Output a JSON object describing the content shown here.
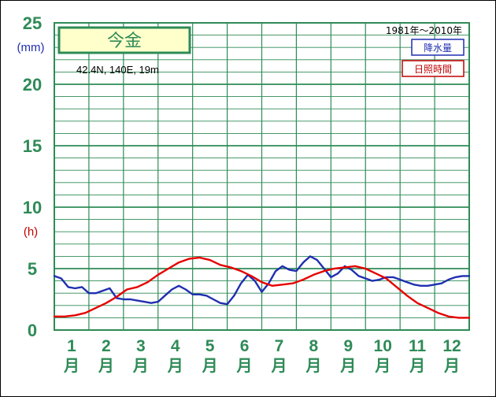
{
  "chart_data": {
    "type": "line",
    "station": "今金",
    "location": "42.4N,  140E,  19m",
    "period": "1981年〜2010年",
    "y_unit_precip": "(mm)",
    "y_unit_sun": "(h)",
    "y_ticks": [
      "0",
      "5",
      "10",
      "15",
      "20",
      "25"
    ],
    "ylim": [
      0,
      25
    ],
    "xlim": [
      0.5,
      12.5
    ],
    "grid": true,
    "legend_position": "top-right",
    "months": [
      {
        "num": "1",
        "kanji": "月"
      },
      {
        "num": "2",
        "kanji": "月"
      },
      {
        "num": "3",
        "kanji": "月"
      },
      {
        "num": "4",
        "kanji": "月"
      },
      {
        "num": "5",
        "kanji": "月"
      },
      {
        "num": "6",
        "kanji": "月"
      },
      {
        "num": "7",
        "kanji": "月"
      },
      {
        "num": "8",
        "kanji": "月"
      },
      {
        "num": "9",
        "kanji": "月"
      },
      {
        "num": "10",
        "kanji": "月"
      },
      {
        "num": "11",
        "kanji": "月"
      },
      {
        "num": "12",
        "kanji": "月"
      }
    ],
    "series": [
      {
        "name": "降水量",
        "color": "#1f2fb0",
        "x": [
          0.5,
          0.7,
          0.9,
          1.1,
          1.3,
          1.5,
          1.7,
          1.9,
          2.1,
          2.3,
          2.5,
          2.7,
          2.9,
          3.1,
          3.3,
          3.5,
          3.7,
          3.9,
          4.1,
          4.3,
          4.5,
          4.7,
          4.9,
          5.1,
          5.3,
          5.5,
          5.7,
          5.9,
          6.1,
          6.3,
          6.5,
          6.7,
          6.9,
          7.1,
          7.3,
          7.5,
          7.7,
          7.9,
          8.1,
          8.3,
          8.5,
          8.7,
          8.9,
          9.1,
          9.3,
          9.5,
          9.7,
          9.9,
          10.1,
          10.3,
          10.5,
          10.7,
          10.9,
          11.1,
          11.3,
          11.5,
          11.7,
          11.9,
          12.1,
          12.3,
          12.5
        ],
        "y": [
          4.4,
          4.2,
          3.5,
          3.4,
          3.5,
          3.0,
          3.0,
          3.2,
          3.4,
          2.6,
          2.5,
          2.5,
          2.4,
          2.3,
          2.2,
          2.3,
          2.8,
          3.3,
          3.6,
          3.3,
          2.9,
          2.9,
          2.8,
          2.5,
          2.2,
          2.1,
          2.8,
          3.8,
          4.5,
          4.0,
          3.1,
          3.8,
          4.8,
          5.2,
          4.9,
          4.8,
          5.5,
          6.0,
          5.7,
          5.0,
          4.3,
          4.6,
          5.2,
          4.9,
          4.4,
          4.2,
          4.0,
          4.1,
          4.3,
          4.3,
          4.1,
          3.9,
          3.7,
          3.6,
          3.6,
          3.7,
          3.8,
          4.1,
          4.3,
          4.4,
          4.4
        ]
      },
      {
        "name": "日照時間",
        "color": "#e60000",
        "x": [
          0.5,
          0.8,
          1.1,
          1.4,
          1.7,
          2.0,
          2.3,
          2.6,
          2.9,
          3.2,
          3.5,
          3.8,
          4.1,
          4.4,
          4.7,
          5.0,
          5.3,
          5.6,
          5.9,
          6.2,
          6.5,
          6.8,
          7.1,
          7.4,
          7.7,
          8.0,
          8.3,
          8.6,
          8.9,
          9.2,
          9.5,
          9.8,
          10.1,
          10.4,
          10.7,
          11.0,
          11.3,
          11.6,
          11.9,
          12.2,
          12.5
        ],
        "y": [
          1.1,
          1.1,
          1.2,
          1.4,
          1.8,
          2.2,
          2.7,
          3.3,
          3.5,
          3.9,
          4.5,
          5.0,
          5.5,
          5.8,
          5.9,
          5.7,
          5.3,
          5.1,
          4.8,
          4.4,
          3.9,
          3.6,
          3.7,
          3.8,
          4.1,
          4.5,
          4.8,
          5.0,
          5.1,
          5.2,
          5.0,
          4.6,
          4.2,
          3.5,
          2.8,
          2.2,
          1.8,
          1.4,
          1.1,
          1.0,
          1.0
        ]
      }
    ]
  }
}
